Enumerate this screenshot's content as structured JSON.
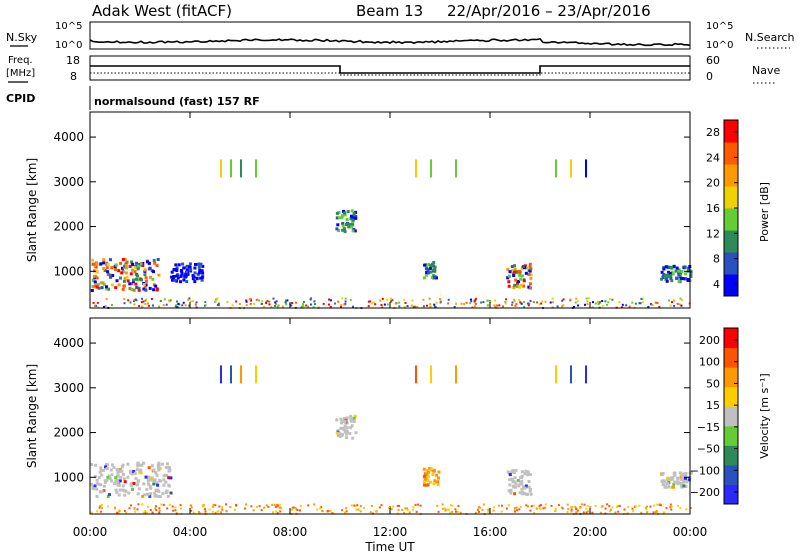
{
  "header": {
    "station": "Adak West (fitACF)",
    "beam": "Beam 13",
    "date_range": "22/Apr/2016 – 23/Apr/2016"
  },
  "status_panels": {
    "nsky_label": "N.Sky",
    "nsearch_label": "N.Search",
    "nsky_ticks": [
      "10^5",
      "10^0"
    ],
    "nsearch_ticks": [
      "10^5",
      "10^0"
    ],
    "freq_label_1": "Freq.",
    "freq_label_2": "[MHz]",
    "freq_ticks": [
      "18",
      "8"
    ],
    "nave_label": "Nave",
    "nave_ticks": [
      "60",
      "0"
    ],
    "cpid_label": "CPID",
    "cpid_text": "normalsound (fast) 157 RF"
  },
  "colors": {
    "frame": "#000000",
    "power_scale": [
      "#0000ff",
      "#2a52be",
      "#2e8b57",
      "#66cc33",
      "#f0d000",
      "#ff9900",
      "#ff5a00",
      "#ff0000"
    ],
    "velocity_scale": [
      "#2a2aff",
      "#2a52be",
      "#2e8b57",
      "#66cc33",
      "#c0c0c0",
      "#ffcc00",
      "#ff9900",
      "#ff5500",
      "#ff0000"
    ]
  },
  "chart_data": [
    {
      "type": "heatmap",
      "name": "power",
      "ylabel": "Slant Range [km]",
      "ylim": [
        180,
        4560
      ],
      "yticks": [
        "4000",
        "3000",
        "2000",
        "1000"
      ],
      "xlim_hours": [
        0,
        24
      ],
      "colorbar": {
        "label": "Power [dB]",
        "ticks": [
          "28",
          "24",
          "20",
          "16",
          "12",
          "8",
          "4"
        ],
        "range": [
          0,
          30
        ]
      },
      "echo_regions": [
        {
          "t0": 0.0,
          "t1": 2.7,
          "r0": 600,
          "r1": 1300,
          "level": "mixed-high"
        },
        {
          "t0": 3.2,
          "t1": 4.5,
          "r0": 800,
          "r1": 1200,
          "level": "low"
        },
        {
          "t0": 9.8,
          "t1": 10.6,
          "r0": 1900,
          "r1": 2400,
          "level": "mid"
        },
        {
          "t0": 13.3,
          "t1": 13.9,
          "r0": 850,
          "r1": 1250,
          "level": "mid"
        },
        {
          "t0": 16.6,
          "t1": 17.6,
          "r0": 650,
          "r1": 1200,
          "level": "mixed-high"
        },
        {
          "t0": 22.8,
          "t1": 24.0,
          "r0": 800,
          "r1": 1150,
          "level": "mid"
        }
      ]
    },
    {
      "type": "heatmap",
      "name": "velocity",
      "xlabel": "Time UT",
      "ylabel": "Slant Range [km]",
      "ylim": [
        180,
        4560
      ],
      "yticks": [
        "4000",
        "3000",
        "2000",
        "1000"
      ],
      "xticks": [
        "00:00",
        "04:00",
        "08:00",
        "12:00",
        "16:00",
        "20:00",
        "00:00"
      ],
      "xlim_hours": [
        0,
        24
      ],
      "colorbar": {
        "label": "Velocity [m s⁻¹]",
        "ticks": [
          "200",
          "100",
          "50",
          "15",
          "−15",
          "−50",
          "−100",
          "−200"
        ]
      },
      "echo_regions": [
        {
          "t0": 0.0,
          "t1": 3.2,
          "r0": 600,
          "r1": 1350,
          "level": "near-zero"
        },
        {
          "t0": 9.8,
          "t1": 10.6,
          "r0": 1900,
          "r1": 2400,
          "level": "near-zero"
        },
        {
          "t0": 13.3,
          "t1": 13.9,
          "r0": 850,
          "r1": 1250,
          "level": "negative"
        },
        {
          "t0": 16.6,
          "t1": 17.6,
          "r0": 650,
          "r1": 1200,
          "level": "near-zero"
        },
        {
          "t0": 22.8,
          "t1": 24.0,
          "r0": 800,
          "r1": 1150,
          "level": "near-zero"
        }
      ]
    }
  ]
}
